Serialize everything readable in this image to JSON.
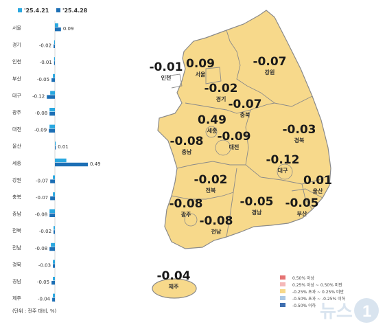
{
  "chart_data": {
    "type": "bar",
    "orientation": "horizontal",
    "categories": [
      "서울",
      "경기",
      "인천",
      "부산",
      "대구",
      "광주",
      "대전",
      "울산",
      "세종",
      "강원",
      "충북",
      "충남",
      "전북",
      "전남",
      "경북",
      "경남",
      "제주"
    ],
    "series": [
      {
        "name": "'25.4.21",
        "color": "#2aa8e0",
        "values": [
          0.05,
          -0.01,
          -0.01,
          -0.03,
          -0.07,
          -0.08,
          -0.08,
          0.01,
          0.17,
          -0.03,
          -0.03,
          -0.08,
          -0.02,
          -0.06,
          -0.03,
          -0.03,
          -0.03
        ]
      },
      {
        "name": "'25.4.28",
        "color": "#1d6fb5",
        "values": [
          0.09,
          -0.02,
          -0.01,
          -0.05,
          -0.12,
          -0.08,
          -0.09,
          0.01,
          0.49,
          -0.07,
          -0.07,
          -0.08,
          -0.02,
          -0.08,
          -0.03,
          -0.05,
          -0.04
        ]
      }
    ],
    "value_labels": [
      "0.09",
      "-0.02",
      "-0.01",
      "-0.05",
      "-0.12",
      "-0.08",
      "-0.09",
      "0.01",
      "0.49",
      "-0.07",
      "-0.07",
      "-0.08",
      "-0.02",
      "-0.08",
      "-0.03",
      "-0.05",
      "-0.04"
    ],
    "unit_note": "(단위 : 전주 대비, %)",
    "legend_position": "top"
  },
  "map": {
    "labels": [
      {
        "region": "인천",
        "value": "-0.01"
      },
      {
        "region": "서울",
        "value": "0.09"
      },
      {
        "region": "경기",
        "value": "-0.02"
      },
      {
        "region": "강원",
        "value": "-0.07"
      },
      {
        "region": "충북",
        "value": "-0.07"
      },
      {
        "region": "세종",
        "value": "0.49"
      },
      {
        "region": "대전",
        "value": "-0.09"
      },
      {
        "region": "충남",
        "value": "-0.08"
      },
      {
        "region": "경북",
        "value": "-0.03"
      },
      {
        "region": "대구",
        "value": "-0.12"
      },
      {
        "region": "울산",
        "value": "0.01"
      },
      {
        "region": "전북",
        "value": "-0.02"
      },
      {
        "region": "경남",
        "value": "-0.05"
      },
      {
        "region": "부산",
        "value": "-0.05"
      },
      {
        "region": "광주",
        "value": "-0.08"
      },
      {
        "region": "전남",
        "value": "-0.08"
      },
      {
        "region": "제주",
        "value": "-0.04"
      }
    ],
    "fill_color": "#f7d98b",
    "border_color": "#8a8a8a"
  },
  "legend": [
    {
      "label": "0.50% 이상",
      "color": "#e57373"
    },
    {
      "label": "0.25% 이상 ~ 0.50% 미만",
      "color": "#f5b8b8"
    },
    {
      "label": "-0.25% 초과 ~ 0.25% 미만",
      "color": "#f7d98b"
    },
    {
      "label": "-0.50% 초과 ~ -0.25% 이하",
      "color": "#aac8e6"
    },
    {
      "label": "-0.50% 이하",
      "color": "#3f6fb0"
    }
  ]
}
